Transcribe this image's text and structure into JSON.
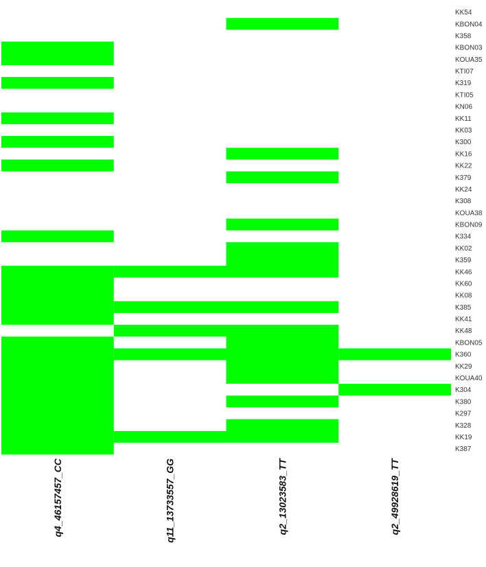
{
  "chart_data": {
    "type": "heatmap",
    "fill_color": "#00ff00",
    "background_color": "#ffffff",
    "grid": false,
    "columns": [
      "q4_46157457_CC",
      "q11_13733557_GG",
      "q2_13023583_TT",
      "q2_49928619_TT"
    ],
    "rows": [
      "KK54",
      "KBON04",
      "K358",
      "KBON03",
      "KOUA35",
      "KTI07",
      "K319",
      "KTI05",
      "KN06",
      "KK11",
      "KK03",
      "K300",
      "KK16",
      "KK22",
      "K379",
      "KK24",
      "K308",
      "KOUA38",
      "KBON09",
      "K334",
      "KK02",
      "K359",
      "KK46",
      "KK60",
      "KK08",
      "K385",
      "KK41",
      "KK48",
      "KBON05",
      "K360",
      "KK29",
      "KOUA40",
      "K304",
      "K380",
      "K297",
      "K328",
      "KK19",
      "K387"
    ],
    "values": [
      [
        0,
        0,
        0,
        0
      ],
      [
        0,
        0,
        1,
        0
      ],
      [
        0,
        0,
        0,
        0
      ],
      [
        1,
        0,
        0,
        0
      ],
      [
        1,
        0,
        0,
        0
      ],
      [
        0,
        0,
        0,
        0
      ],
      [
        1,
        0,
        0,
        0
      ],
      [
        0,
        0,
        0,
        0
      ],
      [
        0,
        0,
        0,
        0
      ],
      [
        1,
        0,
        0,
        0
      ],
      [
        0,
        0,
        0,
        0
      ],
      [
        1,
        0,
        0,
        0
      ],
      [
        0,
        0,
        1,
        0
      ],
      [
        1,
        0,
        0,
        0
      ],
      [
        0,
        0,
        1,
        0
      ],
      [
        0,
        0,
        0,
        0
      ],
      [
        0,
        0,
        0,
        0
      ],
      [
        0,
        0,
        0,
        0
      ],
      [
        0,
        0,
        1,
        0
      ],
      [
        1,
        0,
        0,
        0
      ],
      [
        0,
        0,
        1,
        0
      ],
      [
        0,
        0,
        1,
        0
      ],
      [
        1,
        1,
        1,
        0
      ],
      [
        1,
        0,
        0,
        0
      ],
      [
        1,
        0,
        0,
        0
      ],
      [
        1,
        1,
        1,
        0
      ],
      [
        1,
        0,
        0,
        0
      ],
      [
        0,
        1,
        1,
        0
      ],
      [
        1,
        0,
        1,
        0
      ],
      [
        1,
        1,
        1,
        1
      ],
      [
        1,
        0,
        1,
        0
      ],
      [
        1,
        0,
        1,
        0
      ],
      [
        1,
        0,
        0,
        1
      ],
      [
        1,
        0,
        1,
        0
      ],
      [
        1,
        0,
        0,
        0
      ],
      [
        1,
        0,
        1,
        0
      ],
      [
        1,
        1,
        1,
        0
      ],
      [
        1,
        0,
        0,
        0
      ]
    ]
  }
}
